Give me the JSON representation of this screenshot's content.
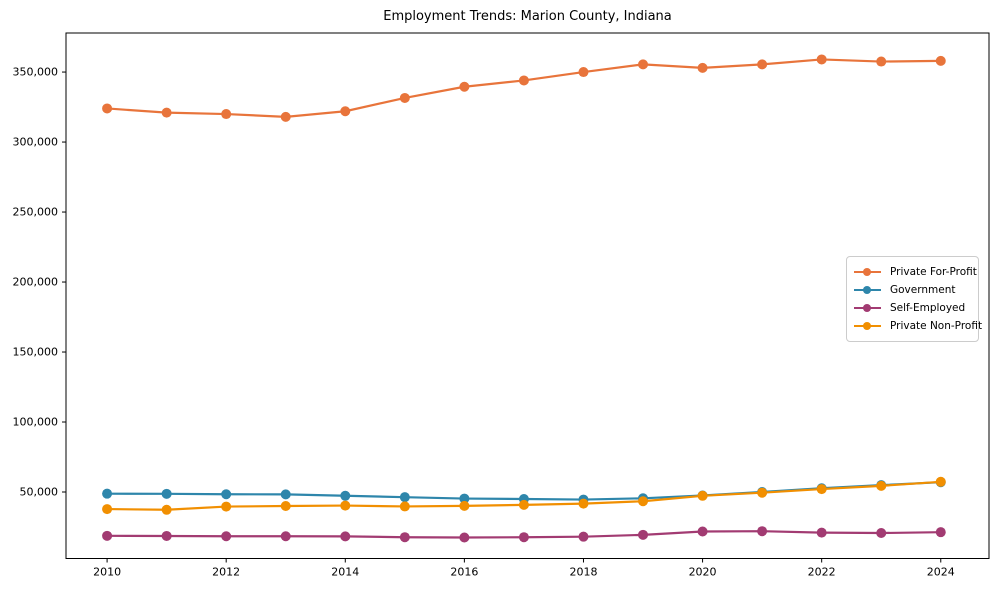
{
  "chart_data": {
    "type": "line",
    "title": "Employment Trends: Marion County, Indiana",
    "xlabel": "",
    "ylabel": "",
    "grid": false,
    "x": [
      2010,
      2011,
      2012,
      2013,
      2014,
      2015,
      2016,
      2017,
      2018,
      2019,
      2020,
      2021,
      2022,
      2023,
      2024
    ],
    "series": [
      {
        "name": "Private For-Profit",
        "color": "#E8743B",
        "values": [
          324000,
          321000,
          320000,
          318000,
          322000,
          331500,
          339500,
          344000,
          350000,
          355500,
          353000,
          355500,
          359000,
          357500,
          358000
        ]
      },
      {
        "name": "Government",
        "color": "#2E86AB",
        "values": [
          48800,
          48700,
          48400,
          48300,
          47300,
          46300,
          45300,
          45000,
          44600,
          45500,
          47500,
          50000,
          52700,
          54900,
          57000
        ]
      },
      {
        "name": "Self-Employed",
        "color": "#A23B72",
        "values": [
          18700,
          18600,
          18400,
          18400,
          18300,
          17700,
          17500,
          17700,
          18100,
          19400,
          21800,
          22000,
          21000,
          20700,
          21300
        ]
      },
      {
        "name": "Private Non-Profit",
        "color": "#F18F01",
        "values": [
          37800,
          37300,
          39600,
          40000,
          40300,
          39700,
          40100,
          40800,
          41700,
          43400,
          47300,
          49500,
          52100,
          54400,
          57300
        ]
      }
    ],
    "xticks": {
      "values": [
        2010,
        2012,
        2014,
        2016,
        2018,
        2020,
        2022,
        2024
      ],
      "labels": [
        "2010",
        "2012",
        "2014",
        "2016",
        "2018",
        "2020",
        "2022",
        "2024"
      ]
    },
    "yticks": {
      "values": [
        50000,
        100000,
        150000,
        200000,
        250000,
        300000,
        350000
      ],
      "labels": [
        "50,000",
        "100,000",
        "150,000",
        "200,000",
        "250,000",
        "300,000",
        "350,000"
      ]
    },
    "xlim": [
      2009.31,
      2024.81
    ],
    "ylim": [
      2500,
      377900
    ],
    "legend": {
      "position": "center right",
      "entries": [
        "Private For-Profit",
        "Government",
        "Self-Employed",
        "Private Non-Profit"
      ]
    }
  }
}
